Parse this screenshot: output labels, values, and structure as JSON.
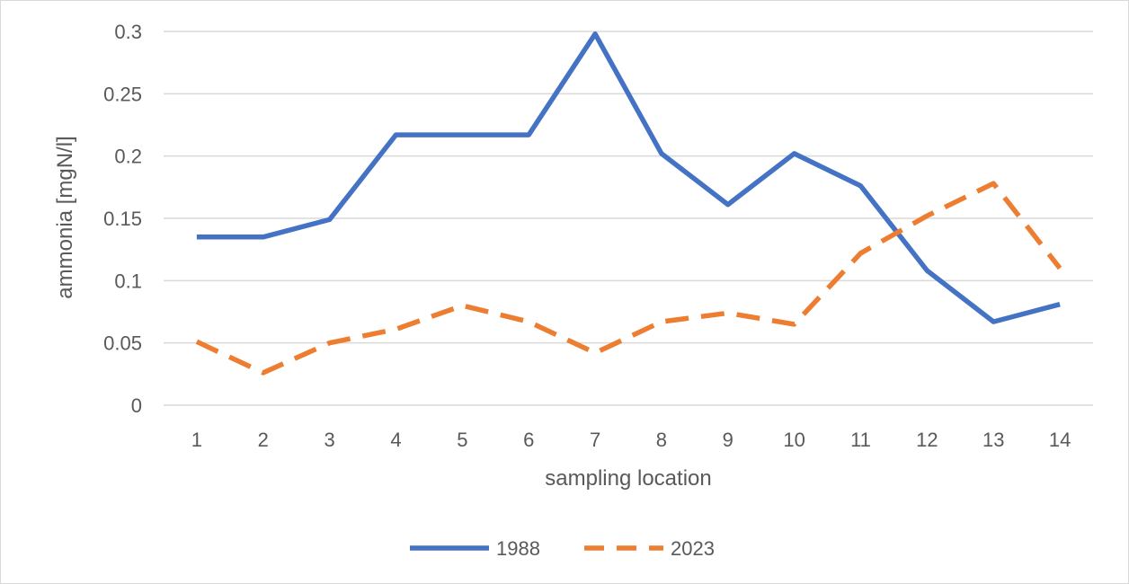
{
  "chart_data": {
    "type": "line",
    "title": "",
    "xlabel": "sampling location",
    "ylabel": "ammonia [mgN/l]",
    "categories": [
      "1",
      "2",
      "3",
      "4",
      "5",
      "6",
      "7",
      "8",
      "9",
      "10",
      "11",
      "12",
      "13",
      "14"
    ],
    "ylim": [
      0,
      0.3
    ],
    "yticks": [
      0,
      0.05,
      0.1,
      0.15,
      0.2,
      0.25,
      0.3
    ],
    "ytick_labels": [
      "0",
      "0.05",
      "0.1",
      "0.15",
      "0.2",
      "0.25",
      "0.3"
    ],
    "grid": true,
    "legend_position": "bottom",
    "series": [
      {
        "name": "1988",
        "color": "#4472C4",
        "dash": "solid",
        "values": [
          0.135,
          0.135,
          0.149,
          0.217,
          0.217,
          0.217,
          0.298,
          0.202,
          0.161,
          0.202,
          0.176,
          0.108,
          0.067,
          0.081
        ]
      },
      {
        "name": "2023",
        "color": "#ED7D31",
        "dash": "dashed",
        "values": [
          0.051,
          0.026,
          0.05,
          0.061,
          0.08,
          0.067,
          0.042,
          0.067,
          0.074,
          0.065,
          0.122,
          0.152,
          0.178,
          0.11
        ]
      }
    ]
  }
}
